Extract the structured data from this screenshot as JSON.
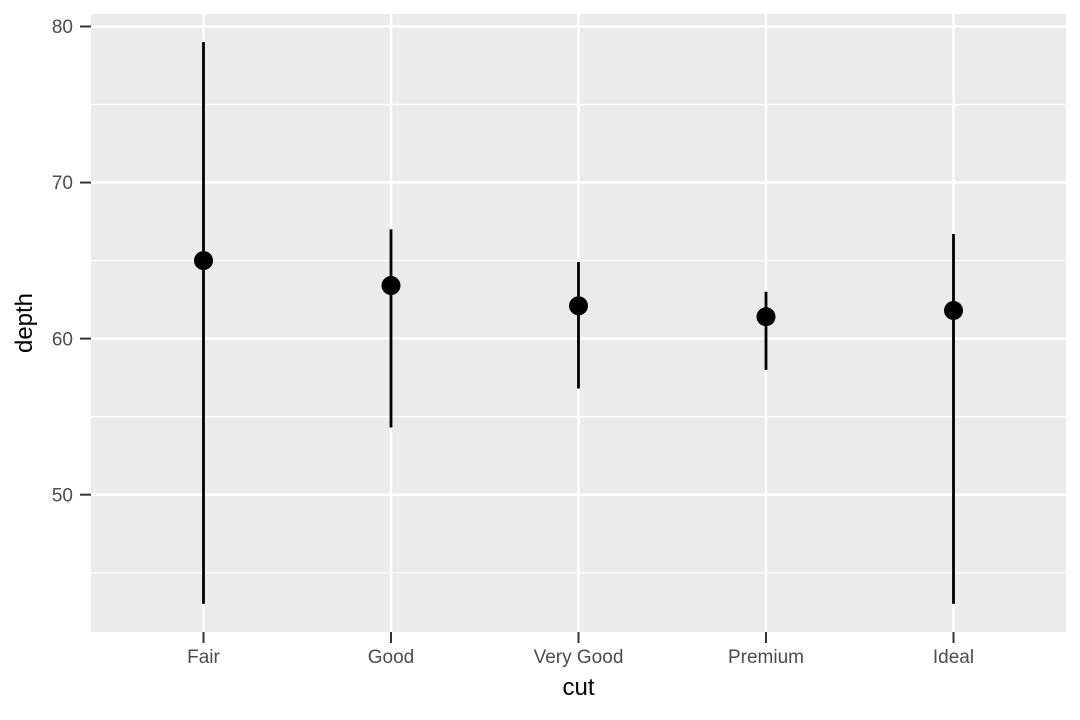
{
  "chart_data": {
    "type": "pointrange",
    "title": "",
    "xlabel": "cut",
    "ylabel": "depth",
    "categories": [
      "Fair",
      "Good",
      "Very Good",
      "Premium",
      "Ideal"
    ],
    "points": [
      {
        "category": "Fair",
        "value": 65.0,
        "ymin": 43.0,
        "ymax": 79.0
      },
      {
        "category": "Good",
        "value": 63.4,
        "ymin": 54.3,
        "ymax": 67.0
      },
      {
        "category": "Very Good",
        "value": 62.1,
        "ymin": 56.8,
        "ymax": 64.9
      },
      {
        "category": "Premium",
        "value": 61.4,
        "ymin": 58.0,
        "ymax": 63.0
      },
      {
        "category": "Ideal",
        "value": 61.8,
        "ymin": 43.0,
        "ymax": 66.7
      }
    ],
    "y_axis": {
      "ticks": [
        80,
        70,
        60,
        50
      ],
      "minor_gridlines": [
        75,
        65,
        55,
        45
      ],
      "range": [
        41.2,
        80.8
      ],
      "grid": true
    },
    "x_axis": {
      "ticks": [
        "Fair",
        "Good",
        "Very Good",
        "Premium",
        "Ideal"
      ],
      "grid": true
    },
    "legend": "none",
    "colors": {
      "panel_background": "#EBEBEB",
      "gridline": "#FFFFFF",
      "mark": "#000000",
      "tick_label": "#4D4D4D",
      "axis_title": "#000000",
      "tick_mark": "#333333"
    }
  }
}
